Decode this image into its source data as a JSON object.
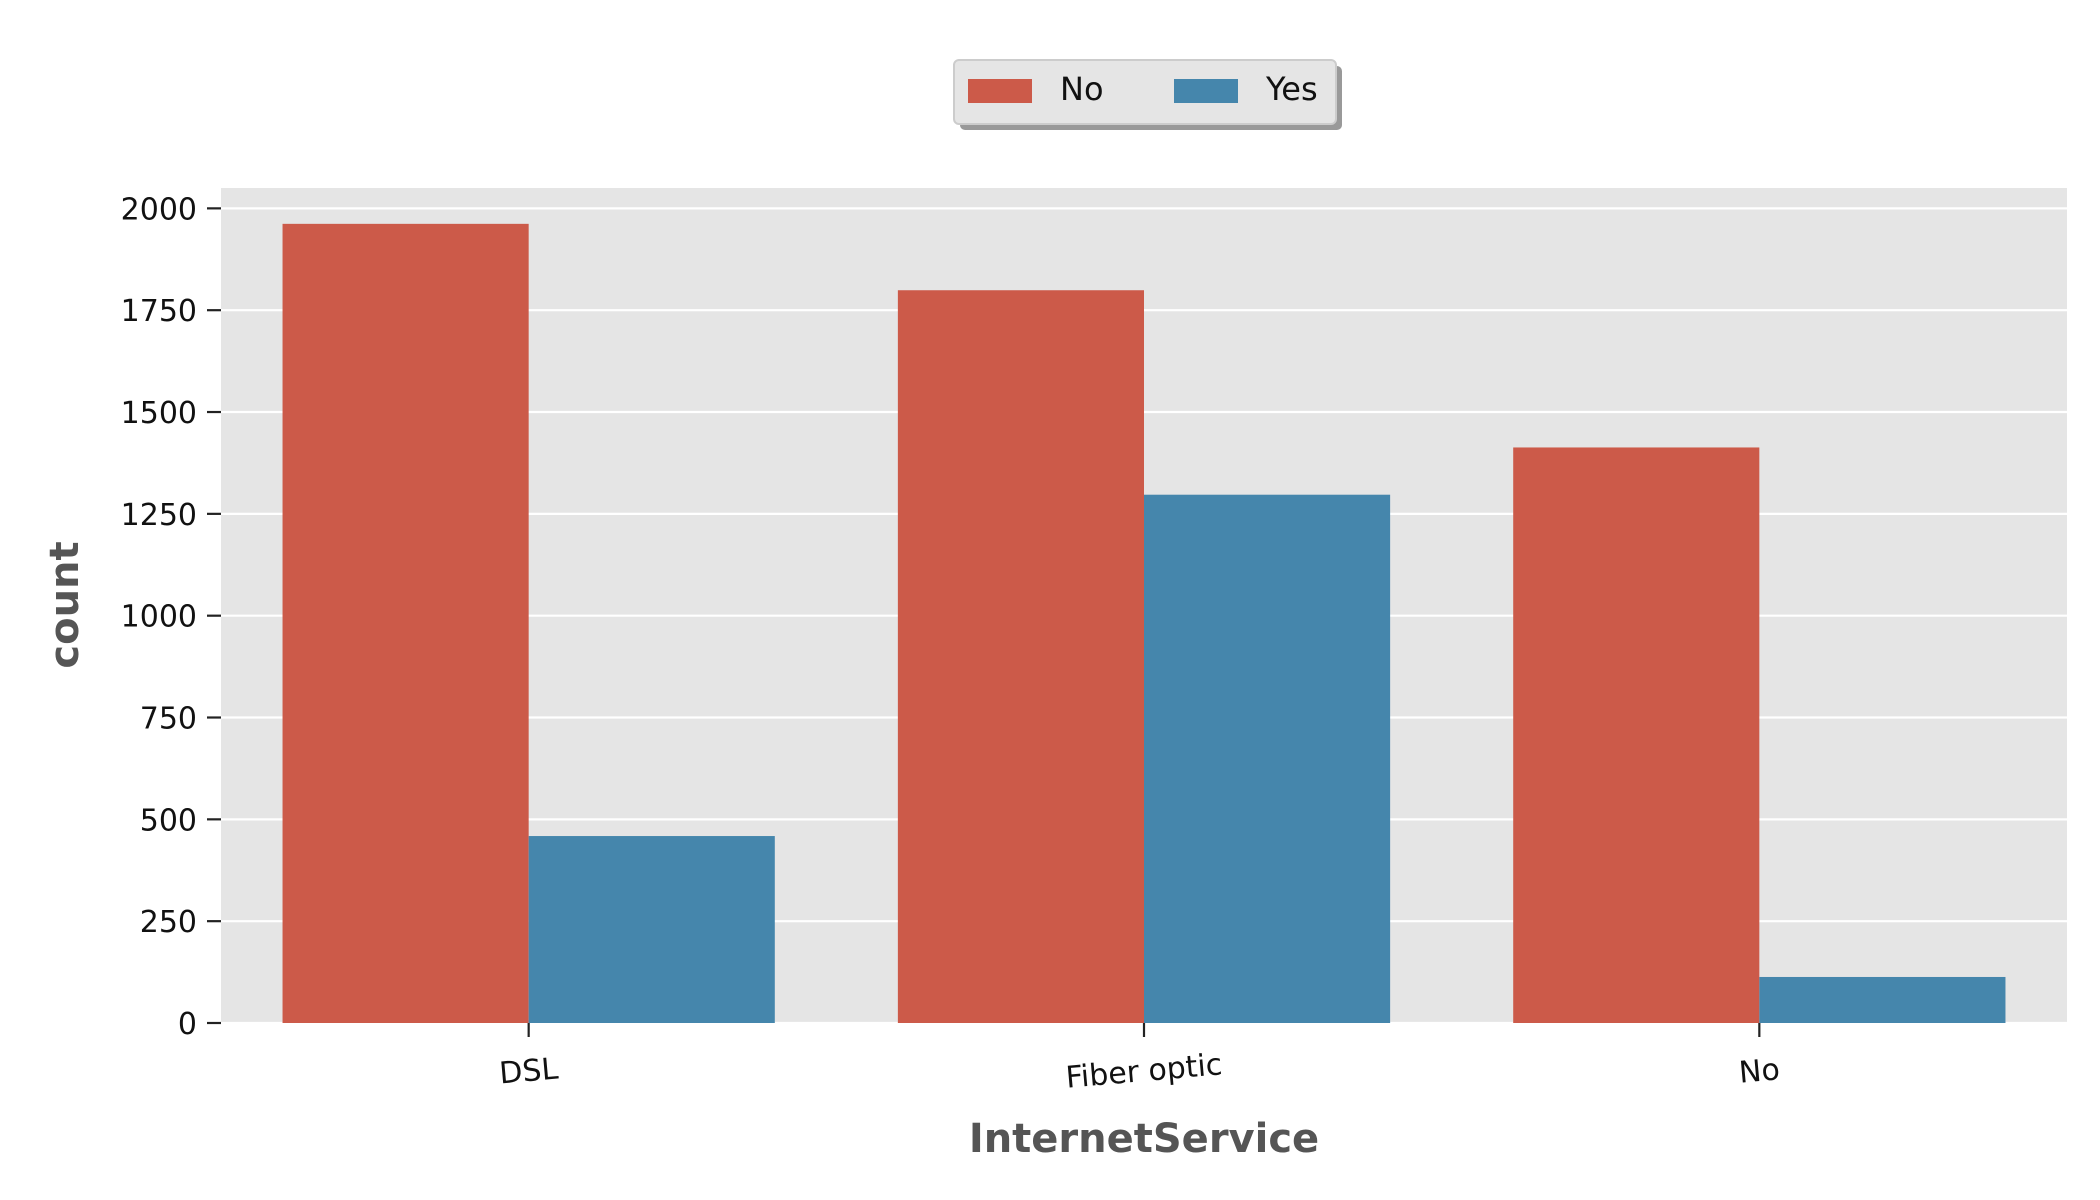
{
  "chart_data": {
    "type": "bar",
    "categories": [
      "DSL",
      "Fiber optic",
      "No"
    ],
    "series": [
      {
        "name": "No",
        "values": [
          1962,
          1799,
          1413
        ]
      },
      {
        "name": "Yes",
        "values": [
          459,
          1297,
          113
        ]
      }
    ],
    "xlabel": "InternetService",
    "ylabel": "count",
    "ylim": [
      0,
      2050
    ],
    "yticks": [
      0,
      250,
      500,
      750,
      1000,
      1250,
      1500,
      1750,
      2000
    ],
    "grid": true,
    "legend_position": "top-center",
    "colors": {
      "No": "#CC5A49",
      "Yes": "#4586AC",
      "background": "#E5E5E5",
      "grid": "#FFFFFF"
    }
  }
}
